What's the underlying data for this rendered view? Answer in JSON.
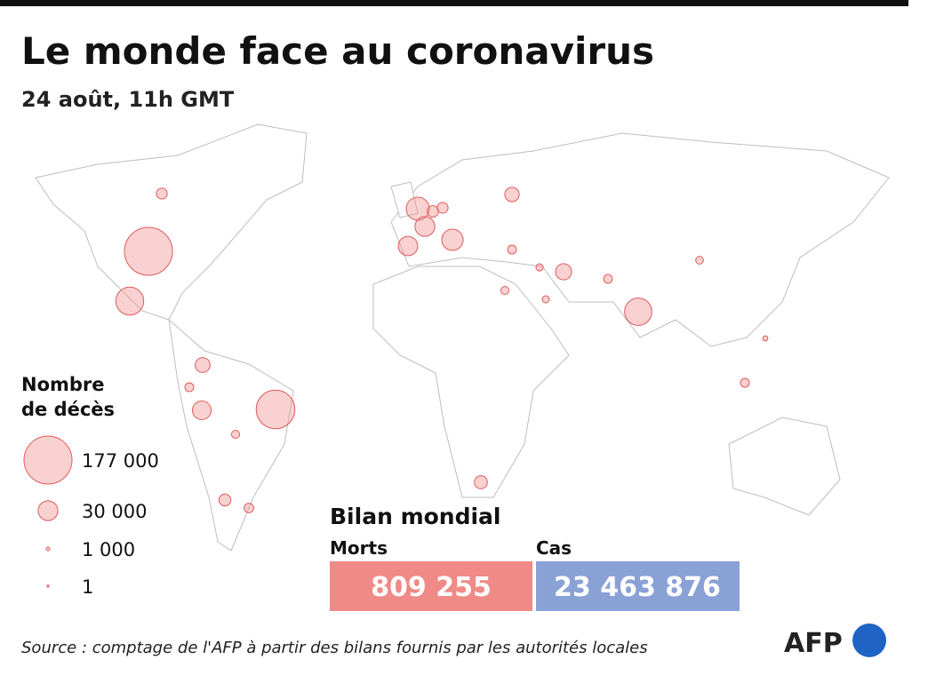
{
  "header": {
    "title": "Le monde face au coronavirus",
    "subtitle": "24 août, 11h GMT"
  },
  "legend": {
    "title_line1": "Nombre",
    "title_line2": "de décès",
    "items": [
      {
        "value": 177000,
        "label": "177 000"
      },
      {
        "value": 30000,
        "label": "30 000"
      },
      {
        "value": 1000,
        "label": "1 000"
      },
      1
    ]
  },
  "bubbles": [
    177000,
    115000,
    60000,
    57000,
    41000,
    35000,
    30000,
    29000,
    27000,
    17000,
    20000,
    16000,
    13000,
    11000,
    9000,
    10000,
    9000,
    7000,
    6000,
    6000,
    6000,
    6000,
    5000,
    5000,
    4600,
    2000,
    3800,
    4000
  ],
  "summary": {
    "title": "Bilan mondial",
    "deaths_label": "Morts",
    "cases_label": "Cas",
    "deaths": {
      "value": 809255,
      "label": "809 255"
    },
    "cases": {
      "value": 23463876,
      "label": "23 463 876"
    }
  },
  "footer": {
    "source": "Source : comptage de l'AFP à partir des bilans fournis par les autorités locales",
    "logo": "AFP"
  }
}
